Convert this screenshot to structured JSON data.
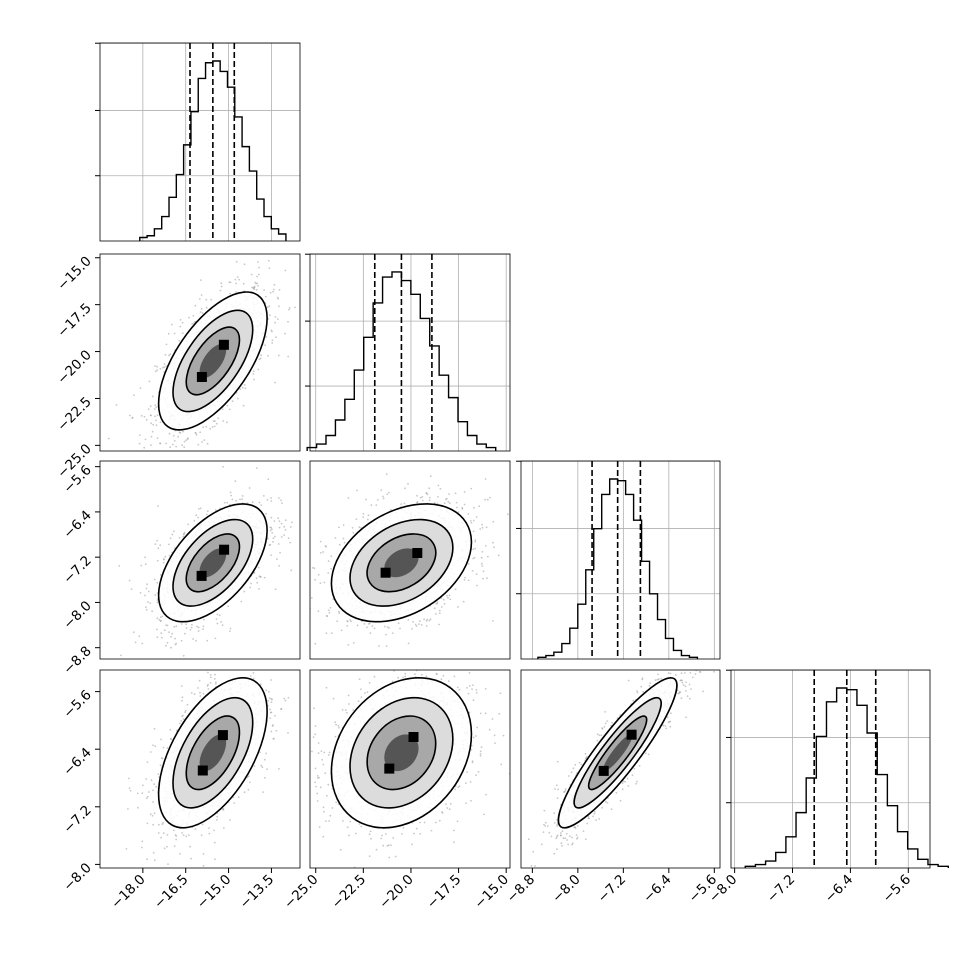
{
  "chart_data": {
    "type": "corner",
    "title": "",
    "grid": true,
    "colors": {
      "marks": "#000000",
      "grid": "#b0b0b0",
      "frame": "#000000"
    },
    "parameters": [
      {
        "name": "",
        "range": [
          -19.5,
          -12.5
        ],
        "ticks": [
          -18.0,
          -16.5,
          -15.0,
          -13.5
        ],
        "tick_labels": [
          "−18.0",
          "−16.5",
          "−15.0",
          "−13.5"
        ],
        "quantiles": [
          -16.35,
          -15.55,
          -14.8
        ]
      },
      {
        "name": "",
        "range": [
          -25.3,
          -14.8
        ],
        "ticks": [
          -25.0,
          -22.5,
          -20.0,
          -17.5,
          -15.0
        ],
        "tick_labels": [
          "−25.0",
          "−22.5",
          "−20.0",
          "−17.5",
          "−15.0"
        ],
        "quantiles": [
          -21.9,
          -20.5,
          -18.9
        ]
      },
      {
        "name": "",
        "range": [
          -9.0,
          -5.5
        ],
        "ticks": [
          -8.8,
          -8.0,
          -7.2,
          -6.4,
          -5.6
        ],
        "tick_labels": [
          "−8.8",
          "−8.0",
          "−7.2",
          "−6.4",
          "−5.6"
        ],
        "quantiles": [
          -7.75,
          -7.3,
          -6.9
        ]
      },
      {
        "name": "",
        "range": [
          -8.05,
          -5.3
        ],
        "ticks": [
          -8.0,
          -7.2,
          -6.4,
          -5.6
        ],
        "tick_labels": [
          "−8.0",
          "−7.2",
          "−6.4",
          "−5.6"
        ],
        "quantiles": [
          -6.9,
          -6.45,
          -6.05
        ]
      }
    ],
    "histograms": [
      {
        "param": 0,
        "counts": [
          2,
          3,
          7,
          14,
          25,
          38,
          55,
          74,
          93,
          102,
          103,
          97,
          88,
          71,
          54,
          40,
          24,
          14,
          7,
          4
        ]
      },
      {
        "param": 1,
        "counts": [
          2,
          4,
          9,
          18,
          30,
          47,
          66,
          86,
          101,
          104,
          99,
          91,
          77,
          61,
          44,
          31,
          17,
          9,
          4,
          2
        ]
      },
      {
        "param": 2,
        "counts": [
          1,
          2,
          4,
          9,
          18,
          32,
          52,
          76,
          96,
          105,
          104,
          96,
          81,
          57,
          38,
          23,
          12,
          5,
          2,
          1
        ]
      },
      {
        "param": 3,
        "counts": [
          1,
          2,
          4,
          9,
          18,
          32,
          52,
          76,
          96,
          104,
          103,
          94,
          78,
          54,
          36,
          21,
          11,
          5,
          2,
          1
        ]
      }
    ],
    "pair_correlations": [
      {
        "x": 0,
        "y": 1,
        "rho": 0.62
      },
      {
        "x": 0,
        "y": 2,
        "rho": 0.55
      },
      {
        "x": 1,
        "y": 2,
        "rho": 0.35
      },
      {
        "x": 0,
        "y": 3,
        "rho": 0.55
      },
      {
        "x": 1,
        "y": 3,
        "rho": 0.25
      },
      {
        "x": 2,
        "y": 3,
        "rho": 0.9
      }
    ]
  }
}
